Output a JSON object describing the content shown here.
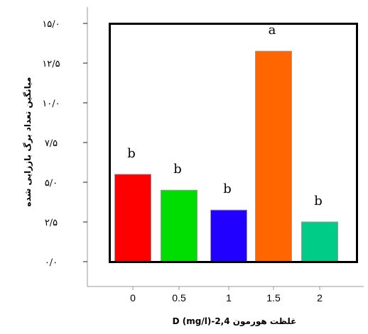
{
  "chart_data": {
    "type": "bar",
    "title": "",
    "xlabel": "غلظت هورمون 2,4-D (mg/l)",
    "ylabel": "میانگین تعداد برگ باززایی شده",
    "categories": [
      "0",
      "0.5",
      "1",
      "1.5",
      "2"
    ],
    "values": [
      5.5,
      4.5,
      3.25,
      13.25,
      2.5
    ],
    "significance_letters": [
      "b",
      "b",
      "b",
      "a",
      "b"
    ],
    "ylim": [
      0,
      15
    ],
    "yticks": [
      0,
      2.5,
      5,
      7.5,
      10,
      12.5,
      15
    ],
    "ytick_labels": [
      "۰/۰",
      "۲/۵",
      "۵/۰",
      "۷/۵",
      "۱۰/۰",
      "۱۲/۵",
      "۱۵/۰"
    ],
    "colors": [
      "#ff0000",
      "#00dd00",
      "#2200ff",
      "#ff6600",
      "#00cc88"
    ],
    "grid": false,
    "legend": "none"
  }
}
